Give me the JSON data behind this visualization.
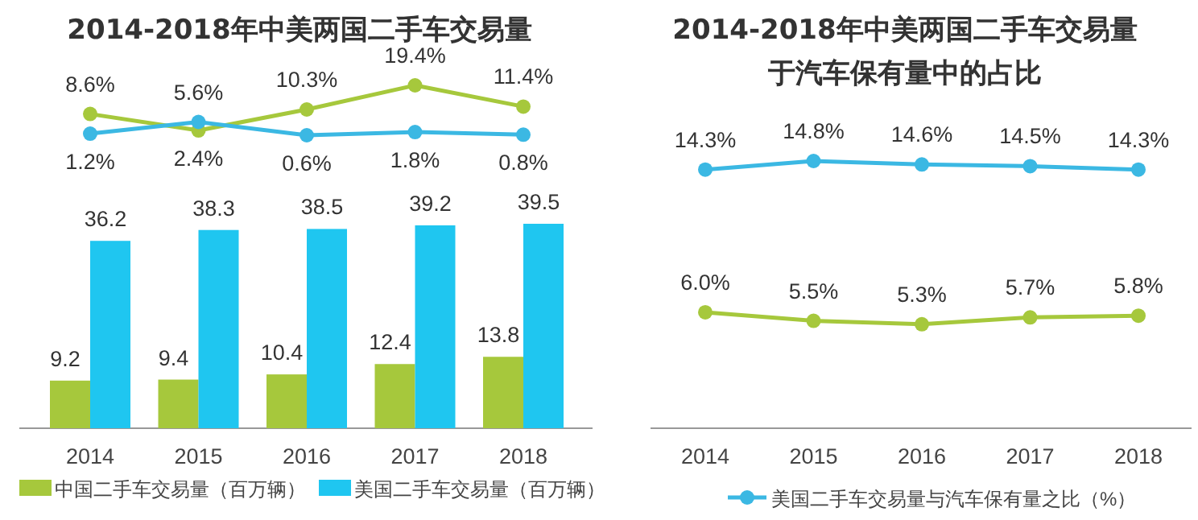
{
  "chart_data": [
    {
      "type": "line",
      "title": "2014-2018年中美两国二手车交易量",
      "categories": [
        null,
        null,
        null,
        null,
        null
      ],
      "marker": "circle",
      "series": [
        {
          "color": "#a6c83c",
          "values": [
            8.6,
            2.4,
            10.3,
            19.4,
            11.4
          ],
          "value_labels": [
            "8.6%",
            "2.4%",
            "10.3%",
            "19.4%",
            "11.4%"
          ]
        },
        {
          "color": "#3bb8e3",
          "values": [
            1.2,
            5.6,
            0.6,
            1.8,
            0.8
          ],
          "value_labels": [
            "1.2%",
            "5.6%",
            "0.6%",
            "1.8%",
            "0.8%"
          ]
        }
      ]
    },
    {
      "type": "bar",
      "categories": [
        "2014",
        "2015",
        "2016",
        "2017",
        "2018"
      ],
      "legend": "bottom",
      "series": [
        {
          "name": "中国二手车交易量（百万辆）",
          "color": "#a6c83c",
          "values": [
            9.2,
            9.4,
            10.4,
            12.4,
            13.8
          ],
          "value_labels": [
            "9.2",
            "9.4",
            "10.4",
            "12.4",
            "13.8"
          ]
        },
        {
          "name": "美国二手车交易量（百万辆）",
          "color": "#1fc6f0",
          "values": [
            36.2,
            38.3,
            38.5,
            39.2,
            39.5
          ],
          "value_labels": [
            "36.2",
            "38.3",
            "38.5",
            "39.2",
            "39.5"
          ]
        }
      ]
    },
    {
      "type": "line",
      "title": "2014-2018年中美两国二手车交易量于汽车保有量中的占比",
      "categories": [
        "2014",
        "2015",
        "2016",
        "2017",
        "2018"
      ],
      "legend": "bottom",
      "marker": "circle",
      "series": [
        {
          "name": "美国二手车交易量与汽车保有量之比（%）",
          "color": "#3bb8e3",
          "values": [
            14.3,
            14.8,
            14.6,
            14.5,
            14.3
          ],
          "value_labels": [
            "14.3%",
            "14.8%",
            "14.6%",
            "14.5%",
            "14.3%"
          ]
        },
        {
          "color": "#a6c83c",
          "values": [
            6.0,
            5.5,
            5.3,
            5.7,
            5.8
          ],
          "value_labels": [
            "6.0%",
            "5.5%",
            "5.3%",
            "5.7%",
            "5.8%"
          ]
        }
      ]
    }
  ]
}
